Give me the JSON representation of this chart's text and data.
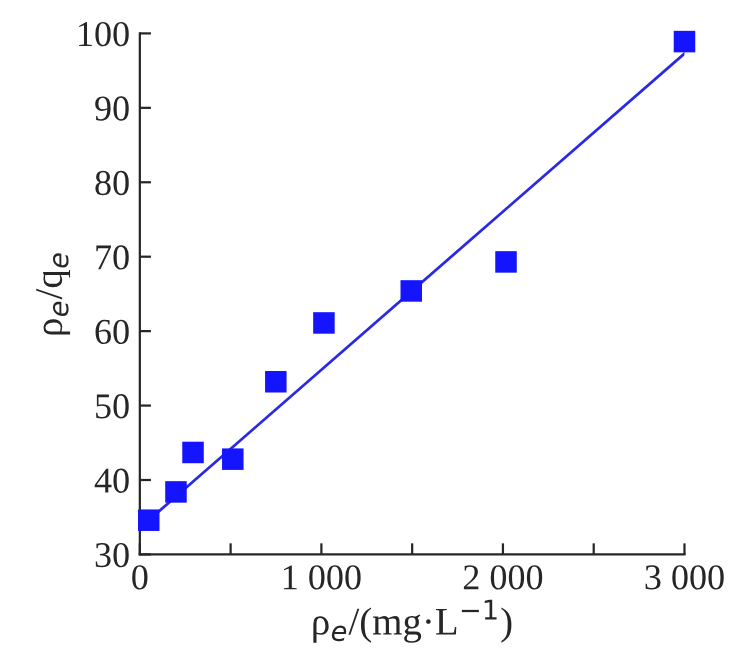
{
  "chart_data": {
    "type": "scatter",
    "xlabel": "ρ$_{e}$/(mg·L$^{−1}$)",
    "ylabel": "ρ$_{e}$/q$_{e}$",
    "xlim": [
      0,
      3000
    ],
    "ylim": [
      30,
      100
    ],
    "xticks": [
      0,
      {
        "value": 500,
        "label": null
      },
      {
        "value": 1000,
        "label": "1 000"
      },
      {
        "value": 1500,
        "label": null
      },
      {
        "value": 2000,
        "label": "2 000"
      },
      {
        "value": 2500,
        "label": null
      },
      {
        "value": 3000,
        "label": "3 000"
      }
    ],
    "yticks": [
      30,
      40,
      50,
      60,
      70,
      80,
      90,
      100
    ],
    "grid": false,
    "legend": false,
    "series": [
      {
        "color": "#1414ff",
        "marker": "square",
        "x": [
          49,
          199,
          293,
          512,
          749,
          1014,
          1495,
          2017,
          3000
        ],
        "values": [
          34.6,
          38.4,
          43.7,
          42.8,
          53.2,
          61.1,
          65.4,
          69.3,
          98.9
        ]
      },
      {
        "type": "line",
        "color": "#2a2ae6",
        "line_style": "solid",
        "marker": "none",
        "x": [
          49,
          3000
        ],
        "values": [
          34.6,
          97.3
        ]
      }
    ]
  }
}
